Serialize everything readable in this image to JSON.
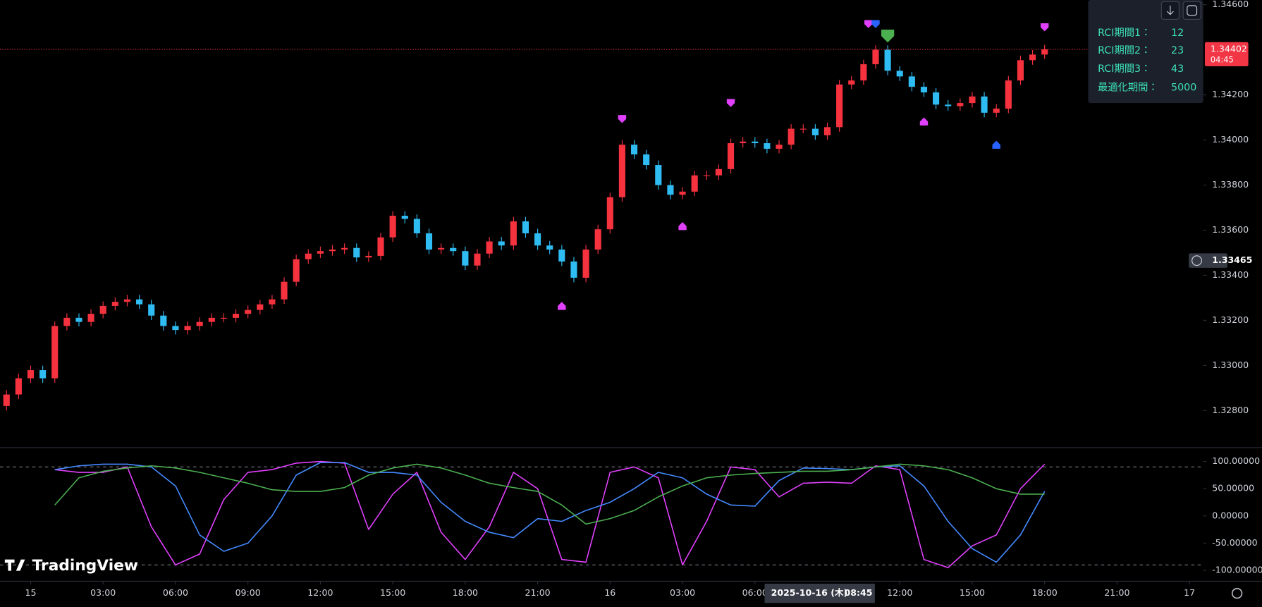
{
  "chart_data": [
    {
      "type": "candlestick",
      "x": [
        -1,
        -0.5,
        0,
        0.5,
        1,
        1.5,
        2,
        2.5,
        3,
        3.5,
        4,
        4.5,
        5,
        5.5,
        6,
        6.5,
        7,
        7.5,
        8,
        8.5,
        9,
        9.5,
        10,
        10.5,
        11,
        11.5,
        12,
        12.5,
        13,
        13.5,
        14,
        14.5,
        15,
        15.5,
        16,
        16.5,
        17,
        17.5,
        18,
        18.5,
        19,
        19.5,
        20,
        20.5,
        21,
        21.5,
        22,
        22.5,
        23,
        23.5,
        24,
        24.5,
        25,
        25.5,
        26,
        26.5,
        27,
        27.5,
        28,
        28.5,
        29,
        29.5,
        30,
        30.5,
        31,
        31.5,
        32,
        32.5,
        33,
        33.5,
        34,
        34.5,
        35,
        35.5,
        36,
        36.5,
        37,
        37.5,
        38,
        38.5,
        39,
        39.5,
        40,
        40.5,
        41,
        41.5,
        42
      ],
      "open": [
        1.3282,
        1.32871,
        1.32943,
        1.32979,
        1.32943,
        1.33175,
        1.33211,
        1.33193,
        1.33229,
        1.33264,
        1.33282,
        1.33293,
        1.33271,
        1.33221,
        1.33175,
        1.33157,
        1.33175,
        1.33193,
        1.33211,
        1.33211,
        1.33229,
        1.33246,
        1.33271,
        1.33293,
        1.33371,
        1.33471,
        1.33496,
        1.33507,
        1.33514,
        1.33521,
        1.33479,
        1.33486,
        1.33568,
        1.33664,
        1.3365,
        1.33586,
        1.33514,
        1.33521,
        1.33507,
        1.33443,
        1.33496,
        1.3355,
        1.33532,
        1.33639,
        1.33586,
        1.33532,
        1.33514,
        1.33461,
        1.33389,
        1.33514,
        1.33604,
        1.33746,
        1.33979,
        1.33936,
        1.33889,
        1.338,
        1.33757,
        1.33771,
        1.33843,
        1.33843,
        1.33871,
        1.33986,
        1.33993,
        1.33986,
        1.33961,
        1.33979,
        1.3405,
        1.3405,
        1.34021,
        1.34057,
        1.34246,
        1.34264,
        1.34336,
        1.344,
        1.34307,
        1.34282,
        1.34236,
        1.34211,
        1.34157,
        1.3415,
        1.34164,
        1.34193,
        1.34121,
        1.34139,
        1.34264,
        1.34354,
        1.34379
      ],
      "high": [
        1.32891,
        1.32963,
        1.32999,
        1.32999,
        1.33195,
        1.33231,
        1.33231,
        1.33249,
        1.33284,
        1.33302,
        1.33313,
        1.33313,
        1.33291,
        1.33241,
        1.33195,
        1.33195,
        1.33213,
        1.33231,
        1.33231,
        1.33249,
        1.33266,
        1.33291,
        1.33313,
        1.33391,
        1.33491,
        1.33516,
        1.33527,
        1.33534,
        1.33541,
        1.33541,
        1.33506,
        1.33588,
        1.33684,
        1.33684,
        1.3367,
        1.33606,
        1.33541,
        1.33541,
        1.33527,
        1.33516,
        1.3357,
        1.3357,
        1.33659,
        1.33659,
        1.33606,
        1.33552,
        1.33534,
        1.33481,
        1.33534,
        1.33624,
        1.33766,
        1.33999,
        1.33999,
        1.33956,
        1.33909,
        1.3382,
        1.33791,
        1.33863,
        1.33863,
        1.33891,
        1.34006,
        1.34013,
        1.34013,
        1.34006,
        1.33999,
        1.3407,
        1.3407,
        1.3407,
        1.34077,
        1.34266,
        1.34284,
        1.34356,
        1.3442,
        1.3442,
        1.34327,
        1.34302,
        1.34256,
        1.34231,
        1.34177,
        1.34184,
        1.34213,
        1.34213,
        1.34159,
        1.34284,
        1.34374,
        1.34399,
        1.34422
      ],
      "low": [
        1.328,
        1.32851,
        1.32923,
        1.32923,
        1.32923,
        1.33155,
        1.33173,
        1.33173,
        1.33209,
        1.33244,
        1.33262,
        1.33251,
        1.33201,
        1.33155,
        1.33137,
        1.33137,
        1.33155,
        1.33173,
        1.33191,
        1.33191,
        1.33209,
        1.33226,
        1.33251,
        1.33273,
        1.33351,
        1.33451,
        1.33476,
        1.33487,
        1.33494,
        1.33459,
        1.33459,
        1.33466,
        1.33548,
        1.3363,
        1.33566,
        1.33494,
        1.33494,
        1.33487,
        1.33423,
        1.33423,
        1.33476,
        1.33512,
        1.33512,
        1.33566,
        1.33512,
        1.33494,
        1.33441,
        1.33369,
        1.33369,
        1.33494,
        1.33584,
        1.33726,
        1.33916,
        1.33869,
        1.3378,
        1.33737,
        1.33737,
        1.33751,
        1.33823,
        1.33823,
        1.33851,
        1.33966,
        1.33966,
        1.33941,
        1.33941,
        1.33959,
        1.3403,
        1.34001,
        1.34001,
        1.34037,
        1.34226,
        1.34244,
        1.34316,
        1.34287,
        1.34262,
        1.34216,
        1.34191,
        1.34137,
        1.3413,
        1.3413,
        1.34144,
        1.34101,
        1.34101,
        1.34119,
        1.34244,
        1.34334,
        1.34359
      ],
      "close": [
        1.32871,
        1.32943,
        1.32979,
        1.32943,
        1.33175,
        1.33211,
        1.33193,
        1.33229,
        1.33264,
        1.33282,
        1.33293,
        1.33271,
        1.33221,
        1.33175,
        1.33157,
        1.33175,
        1.33193,
        1.33211,
        1.33211,
        1.33229,
        1.33246,
        1.33271,
        1.33293,
        1.33371,
        1.33471,
        1.33496,
        1.33507,
        1.33514,
        1.33521,
        1.33479,
        1.33486,
        1.33568,
        1.33664,
        1.3365,
        1.33586,
        1.33514,
        1.33521,
        1.33507,
        1.33443,
        1.33496,
        1.3355,
        1.33532,
        1.33639,
        1.33586,
        1.33532,
        1.33514,
        1.33461,
        1.33389,
        1.33514,
        1.33604,
        1.33746,
        1.33979,
        1.33936,
        1.33889,
        1.338,
        1.33757,
        1.33771,
        1.33843,
        1.33843,
        1.33871,
        1.33986,
        1.33993,
        1.33986,
        1.33961,
        1.33979,
        1.3405,
        1.3405,
        1.34021,
        1.34057,
        1.34246,
        1.34264,
        1.34336,
        1.344,
        1.34307,
        1.34282,
        1.34236,
        1.34211,
        1.34157,
        1.3415,
        1.34164,
        1.34193,
        1.34121,
        1.34139,
        1.34264,
        1.34354,
        1.34379,
        1.34402
      ],
      "up_color": "#f7323f",
      "down_color": "#2ebcf2",
      "xlim": [
        -1.27,
        48.57
      ],
      "ylim": [
        1.32639,
        1.34621
      ],
      "yticks": [
        {
          "value": 1.346,
          "label": "1.34600"
        },
        {
          "value": 1.342,
          "label": "1.34200"
        },
        {
          "value": 1.34,
          "label": "1.34000"
        },
        {
          "value": 1.338,
          "label": "1.33800"
        },
        {
          "value": 1.336,
          "label": "1.33600"
        },
        {
          "value": 1.334,
          "label": "1.33400"
        },
        {
          "value": 1.332,
          "label": "1.33200"
        },
        {
          "value": 1.33,
          "label": "1.33000"
        },
        {
          "value": 1.328,
          "label": "1.32800"
        }
      ],
      "grid": false,
      "last_price": 1.34402,
      "countdown": "04:45",
      "last_price_color": "#f23645",
      "cursor_price": 1.33465,
      "markers": [
        {
          "x": 22,
          "y": 1.33264,
          "color": "#e040fb",
          "direction": "up"
        },
        {
          "x": 24.5,
          "y": 1.34093,
          "color": "#e040fb",
          "direction": "down"
        },
        {
          "x": 27,
          "y": 1.33618,
          "color": "#e040fb",
          "direction": "up"
        },
        {
          "x": 29,
          "y": 1.34164,
          "color": "#e040fb",
          "direction": "down"
        },
        {
          "x": 34.7,
          "y": 1.34514,
          "color": "#e040fb",
          "direction": "down"
        },
        {
          "x": 35,
          "y": 1.34514,
          "color": "#2962ff",
          "direction": "down"
        },
        {
          "x": 35.5,
          "y": 1.34461,
          "color": "#4caf50",
          "direction": "down"
        },
        {
          "x": 37,
          "y": 1.34082,
          "color": "#e040fb",
          "direction": "up"
        },
        {
          "x": 40,
          "y": 1.33979,
          "color": "#2962ff",
          "direction": "up"
        },
        {
          "x": 42,
          "y": 1.345,
          "color": "#e040fb",
          "direction": "down"
        }
      ]
    },
    {
      "type": "line",
      "x": [
        1,
        2,
        3,
        4,
        5,
        6,
        7,
        8,
        9,
        10,
        11,
        12,
        13,
        14,
        15,
        16,
        17,
        18,
        19,
        20,
        21,
        22,
        23,
        24,
        25,
        26,
        27,
        28,
        29,
        30,
        31,
        32,
        33,
        34,
        35,
        36,
        37,
        38,
        39,
        40,
        41,
        42
      ],
      "series": [
        {
          "color": "#e040fb",
          "values": [
            85,
            80,
            80,
            90,
            -20,
            -90,
            -70,
            30,
            80,
            85,
            97,
            100,
            97,
            -25,
            40,
            80,
            -30,
            -80,
            -20,
            80,
            50,
            -80,
            -85,
            80,
            90,
            70,
            -90,
            -10,
            90,
            85,
            35,
            60,
            62,
            60,
            92,
            85,
            -80,
            -95,
            -55,
            -35,
            50,
            95
          ]
        },
        {
          "color": "#448aff",
          "values": [
            85,
            92,
            95,
            95,
            90,
            55,
            -35,
            -65,
            -50,
            0,
            75,
            98,
            98,
            80,
            80,
            75,
            25,
            -10,
            -30,
            -40,
            -5,
            -10,
            10,
            25,
            50,
            80,
            70,
            40,
            20,
            18,
            65,
            88,
            87,
            85,
            90,
            92,
            55,
            -10,
            -60,
            -85,
            -35,
            45
          ]
        },
        {
          "color": "#4caf50",
          "values": [
            20,
            70,
            82,
            88,
            92,
            88,
            80,
            70,
            60,
            48,
            45,
            45,
            52,
            75,
            88,
            95,
            88,
            75,
            60,
            52,
            45,
            20,
            -15,
            -5,
            10,
            35,
            55,
            70,
            75,
            78,
            80,
            82,
            82,
            85,
            90,
            95,
            92,
            85,
            70,
            50,
            40,
            40
          ]
        }
      ],
      "xlim": [
        -1.27,
        48.57
      ],
      "ylim": [
        -120,
        124
      ],
      "yticks": [
        {
          "value": 100,
          "label": "100.00000"
        },
        {
          "value": 50,
          "label": "50.00000"
        },
        {
          "value": 0,
          "label": "0.00000"
        },
        {
          "value": -50,
          "label": "-50.00000"
        },
        {
          "value": -100,
          "label": "-100.00000"
        }
      ],
      "levels": [
        90,
        -90
      ],
      "xticks": [
        {
          "value": 0,
          "label": "15"
        },
        {
          "value": 3,
          "label": "03:00"
        },
        {
          "value": 6,
          "label": "06:00"
        },
        {
          "value": 9,
          "label": "09:00"
        },
        {
          "value": 12,
          "label": "12:00"
        },
        {
          "value": 15,
          "label": "15:00"
        },
        {
          "value": 18,
          "label": "18:00"
        },
        {
          "value": 21,
          "label": "21:00"
        },
        {
          "value": 24,
          "label": "16"
        },
        {
          "value": 27,
          "label": "03:00"
        },
        {
          "value": 30,
          "label": "06:00"
        },
        {
          "value": 36,
          "label": "12:00"
        },
        {
          "value": 39,
          "label": "15:00"
        },
        {
          "value": 42,
          "label": "18:00"
        },
        {
          "value": 45,
          "label": "21:00"
        },
        {
          "value": 48,
          "label": "17"
        }
      ]
    }
  ],
  "cursor_time": {
    "date": "2025-10-16 (木)",
    "time": "08:45"
  },
  "inputs": [
    {
      "label": "RCI期間1：",
      "value": 12
    },
    {
      "label": "RCI期間2：",
      "value": 23
    },
    {
      "label": "RCI期間3：",
      "value": 43
    },
    {
      "label": "最適化期間：",
      "value": 5000
    }
  ],
  "brand": "TradingView"
}
